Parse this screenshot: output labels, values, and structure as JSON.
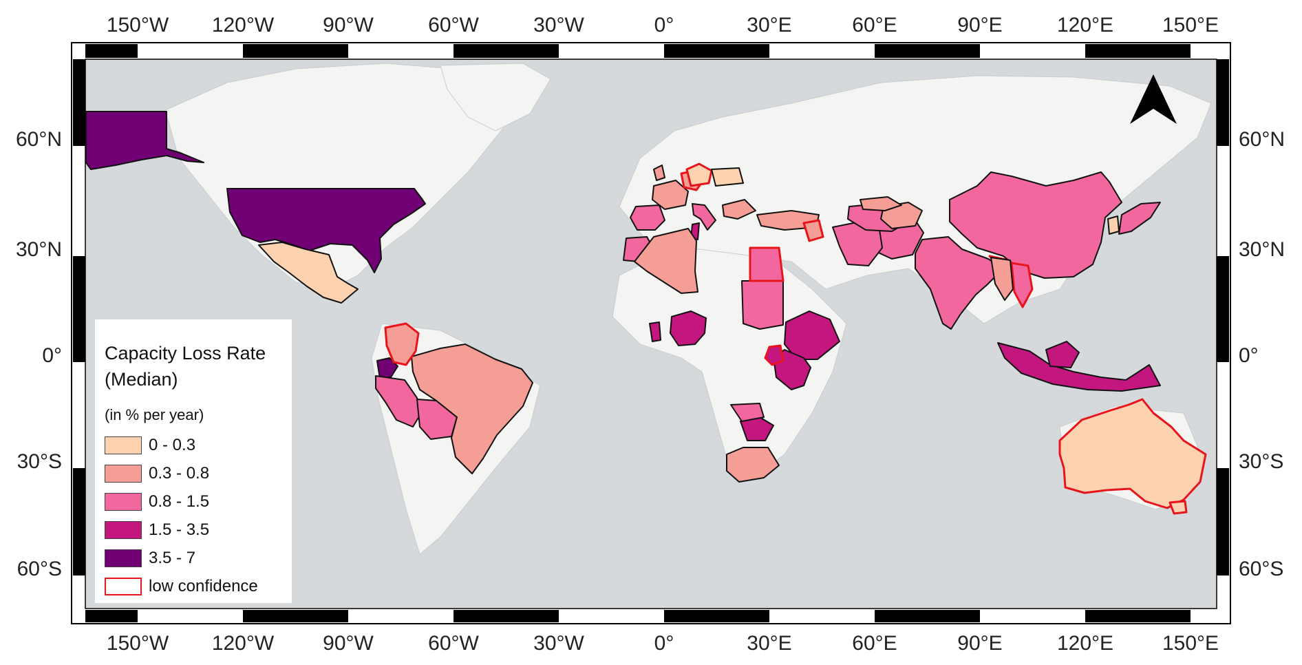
{
  "map": {
    "ticks_top": [
      "150°W",
      "120°W",
      "90°W",
      "60°W",
      "30°W",
      "0°",
      "30°E",
      "60°E",
      "90°E",
      "120°E",
      "150°E"
    ],
    "ticks_bottom": [
      "150°W",
      "120°W",
      "90°W",
      "60°W",
      "30°W",
      "0°",
      "30°E",
      "60°E",
      "90°E",
      "120°E",
      "150°E"
    ],
    "ticks_left": [
      "60°N",
      "30°N",
      "0°",
      "30°S",
      "60°S"
    ],
    "ticks_right": [
      "60°N",
      "30°N",
      "0°",
      "30°S",
      "60°S"
    ],
    "colors": {
      "ocean": "#d5d9dc",
      "land": "#f4f4f2",
      "class_0": "#fdd2b1",
      "class_1": "#f59e96",
      "class_2": "#f2689e",
      "class_3": "#c3167f",
      "class_4": "#700073",
      "low_confidence": "#e8141b"
    },
    "north_arrow_icon": "north-arrow-icon"
  },
  "legend": {
    "title_line1": "Capacity Loss Rate",
    "title_line2": "(Median)",
    "unit": "(in % per year)",
    "items": [
      {
        "label": "0 - 0.3",
        "color": "#fdd2b1"
      },
      {
        "label": "0.3 - 0.8",
        "color": "#f59e96"
      },
      {
        "label": "0.8 - 1.5",
        "color": "#f2689e"
      },
      {
        "label": "1.5 - 3.5",
        "color": "#c3167f"
      },
      {
        "label": "3.5 - 7",
        "color": "#700073"
      },
      {
        "label": "low confidence",
        "color": "#ffffff"
      }
    ]
  }
}
